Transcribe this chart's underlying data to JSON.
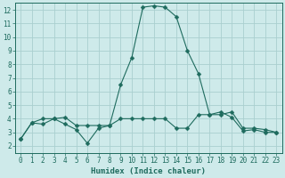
{
  "xlabel": "Humidex (Indice chaleur)",
  "bg_color": "#ceeaea",
  "grid_color": "#aacfcf",
  "line_color": "#1e6b5e",
  "xlim": [
    -0.5,
    23.5
  ],
  "ylim": [
    1.5,
    12.5
  ],
  "xticks": [
    0,
    1,
    2,
    3,
    4,
    5,
    6,
    7,
    8,
    9,
    10,
    11,
    12,
    13,
    14,
    15,
    16,
    17,
    18,
    19,
    20,
    21,
    22,
    23
  ],
  "yticks": [
    2,
    3,
    4,
    5,
    6,
    7,
    8,
    9,
    10,
    11,
    12
  ],
  "series1_x": [
    0,
    1,
    2,
    3,
    4,
    5,
    6,
    7,
    8,
    9,
    10,
    11,
    12,
    13,
    14,
    15,
    16,
    17,
    18,
    19,
    20,
    21,
    22,
    23
  ],
  "series1_y": [
    2.5,
    3.7,
    4.0,
    4.0,
    3.6,
    3.2,
    2.2,
    3.3,
    3.5,
    6.5,
    8.5,
    12.2,
    12.3,
    12.2,
    11.5,
    9.0,
    7.3,
    4.3,
    4.5,
    4.1,
    3.1,
    3.2,
    3.0,
    3.0
  ],
  "series2_x": [
    0,
    1,
    2,
    3,
    4,
    5,
    6,
    7,
    8,
    9,
    10,
    11,
    12,
    13,
    14,
    15,
    16,
    17,
    18,
    19,
    20,
    21,
    22,
    23
  ],
  "series2_y": [
    2.5,
    3.7,
    3.6,
    4.0,
    4.1,
    3.5,
    3.5,
    3.5,
    3.5,
    4.0,
    4.0,
    4.0,
    4.0,
    4.0,
    3.3,
    3.3,
    4.3,
    4.3,
    4.3,
    4.5,
    3.3,
    3.3,
    3.2,
    3.0
  ],
  "markersize": 2.5,
  "linewidth": 0.8,
  "tick_fontsize": 5.5,
  "xlabel_fontsize": 6.5
}
